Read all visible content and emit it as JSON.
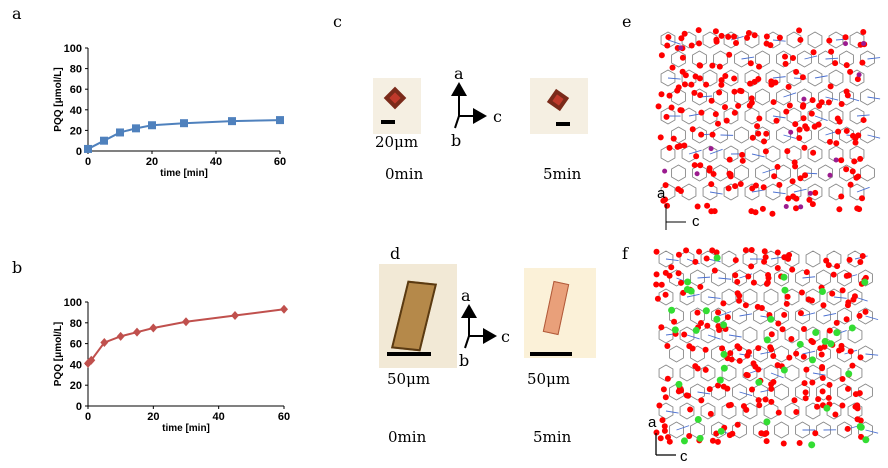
{
  "panels": {
    "a": "a",
    "b": "b",
    "c": "c",
    "d": "d",
    "e": "e",
    "f": "f"
  },
  "chart_data": [
    {
      "id": "a",
      "type": "line",
      "xlabel": "time [min]",
      "ylabel": "PQQ  [μmol/L]",
      "xlim": [
        0,
        60
      ],
      "ylim": [
        0,
        100
      ],
      "xticks": [
        0,
        20,
        40,
        60
      ],
      "yticks": [
        0,
        20,
        40,
        60,
        80,
        100
      ],
      "color": "#4F81BD",
      "marker": "square",
      "series": [
        {
          "x": [
            0,
            5,
            10,
            15,
            20,
            30,
            45,
            60
          ],
          "y": [
            2,
            10,
            18,
            22,
            25,
            27,
            29,
            30
          ]
        }
      ]
    },
    {
      "id": "b",
      "type": "line",
      "xlabel": "time [min]",
      "ylabel": "PQQ [μmol/L]",
      "xlim": [
        0,
        60
      ],
      "ylim": [
        0,
        100
      ],
      "xticks": [
        0,
        20,
        40,
        60
      ],
      "yticks": [
        0,
        20,
        40,
        60,
        80,
        100
      ],
      "color": "#C0504D",
      "marker": "diamond",
      "series": [
        {
          "x": [
            0,
            1,
            5,
            10,
            15,
            20,
            30,
            45,
            60
          ],
          "y": [
            41,
            44,
            61,
            67,
            71,
            75,
            81,
            87,
            93
          ]
        }
      ]
    }
  ],
  "crystals_c": {
    "scale_label": "20μm",
    "axes": {
      "a": "a",
      "b": "b",
      "c": "c"
    },
    "time_left": "0min",
    "time_right": "5min"
  },
  "crystals_d": {
    "scale_left": "50μm",
    "scale_right": "50μm",
    "axes": {
      "a": "a",
      "b": "b",
      "c": "c"
    },
    "time_left": "0min",
    "time_right": "5min"
  },
  "structure_e": {
    "axes": {
      "a": "a",
      "c": "c"
    },
    "atom_color": "#ff0000",
    "bond_color": "#888888",
    "metal_color": "#9b1b8f"
  },
  "structure_f": {
    "axes": {
      "a": "a",
      "c": "c"
    },
    "atom_color": "#ff0000",
    "bond_color": "#888888",
    "accent_color": "#33dd33"
  }
}
